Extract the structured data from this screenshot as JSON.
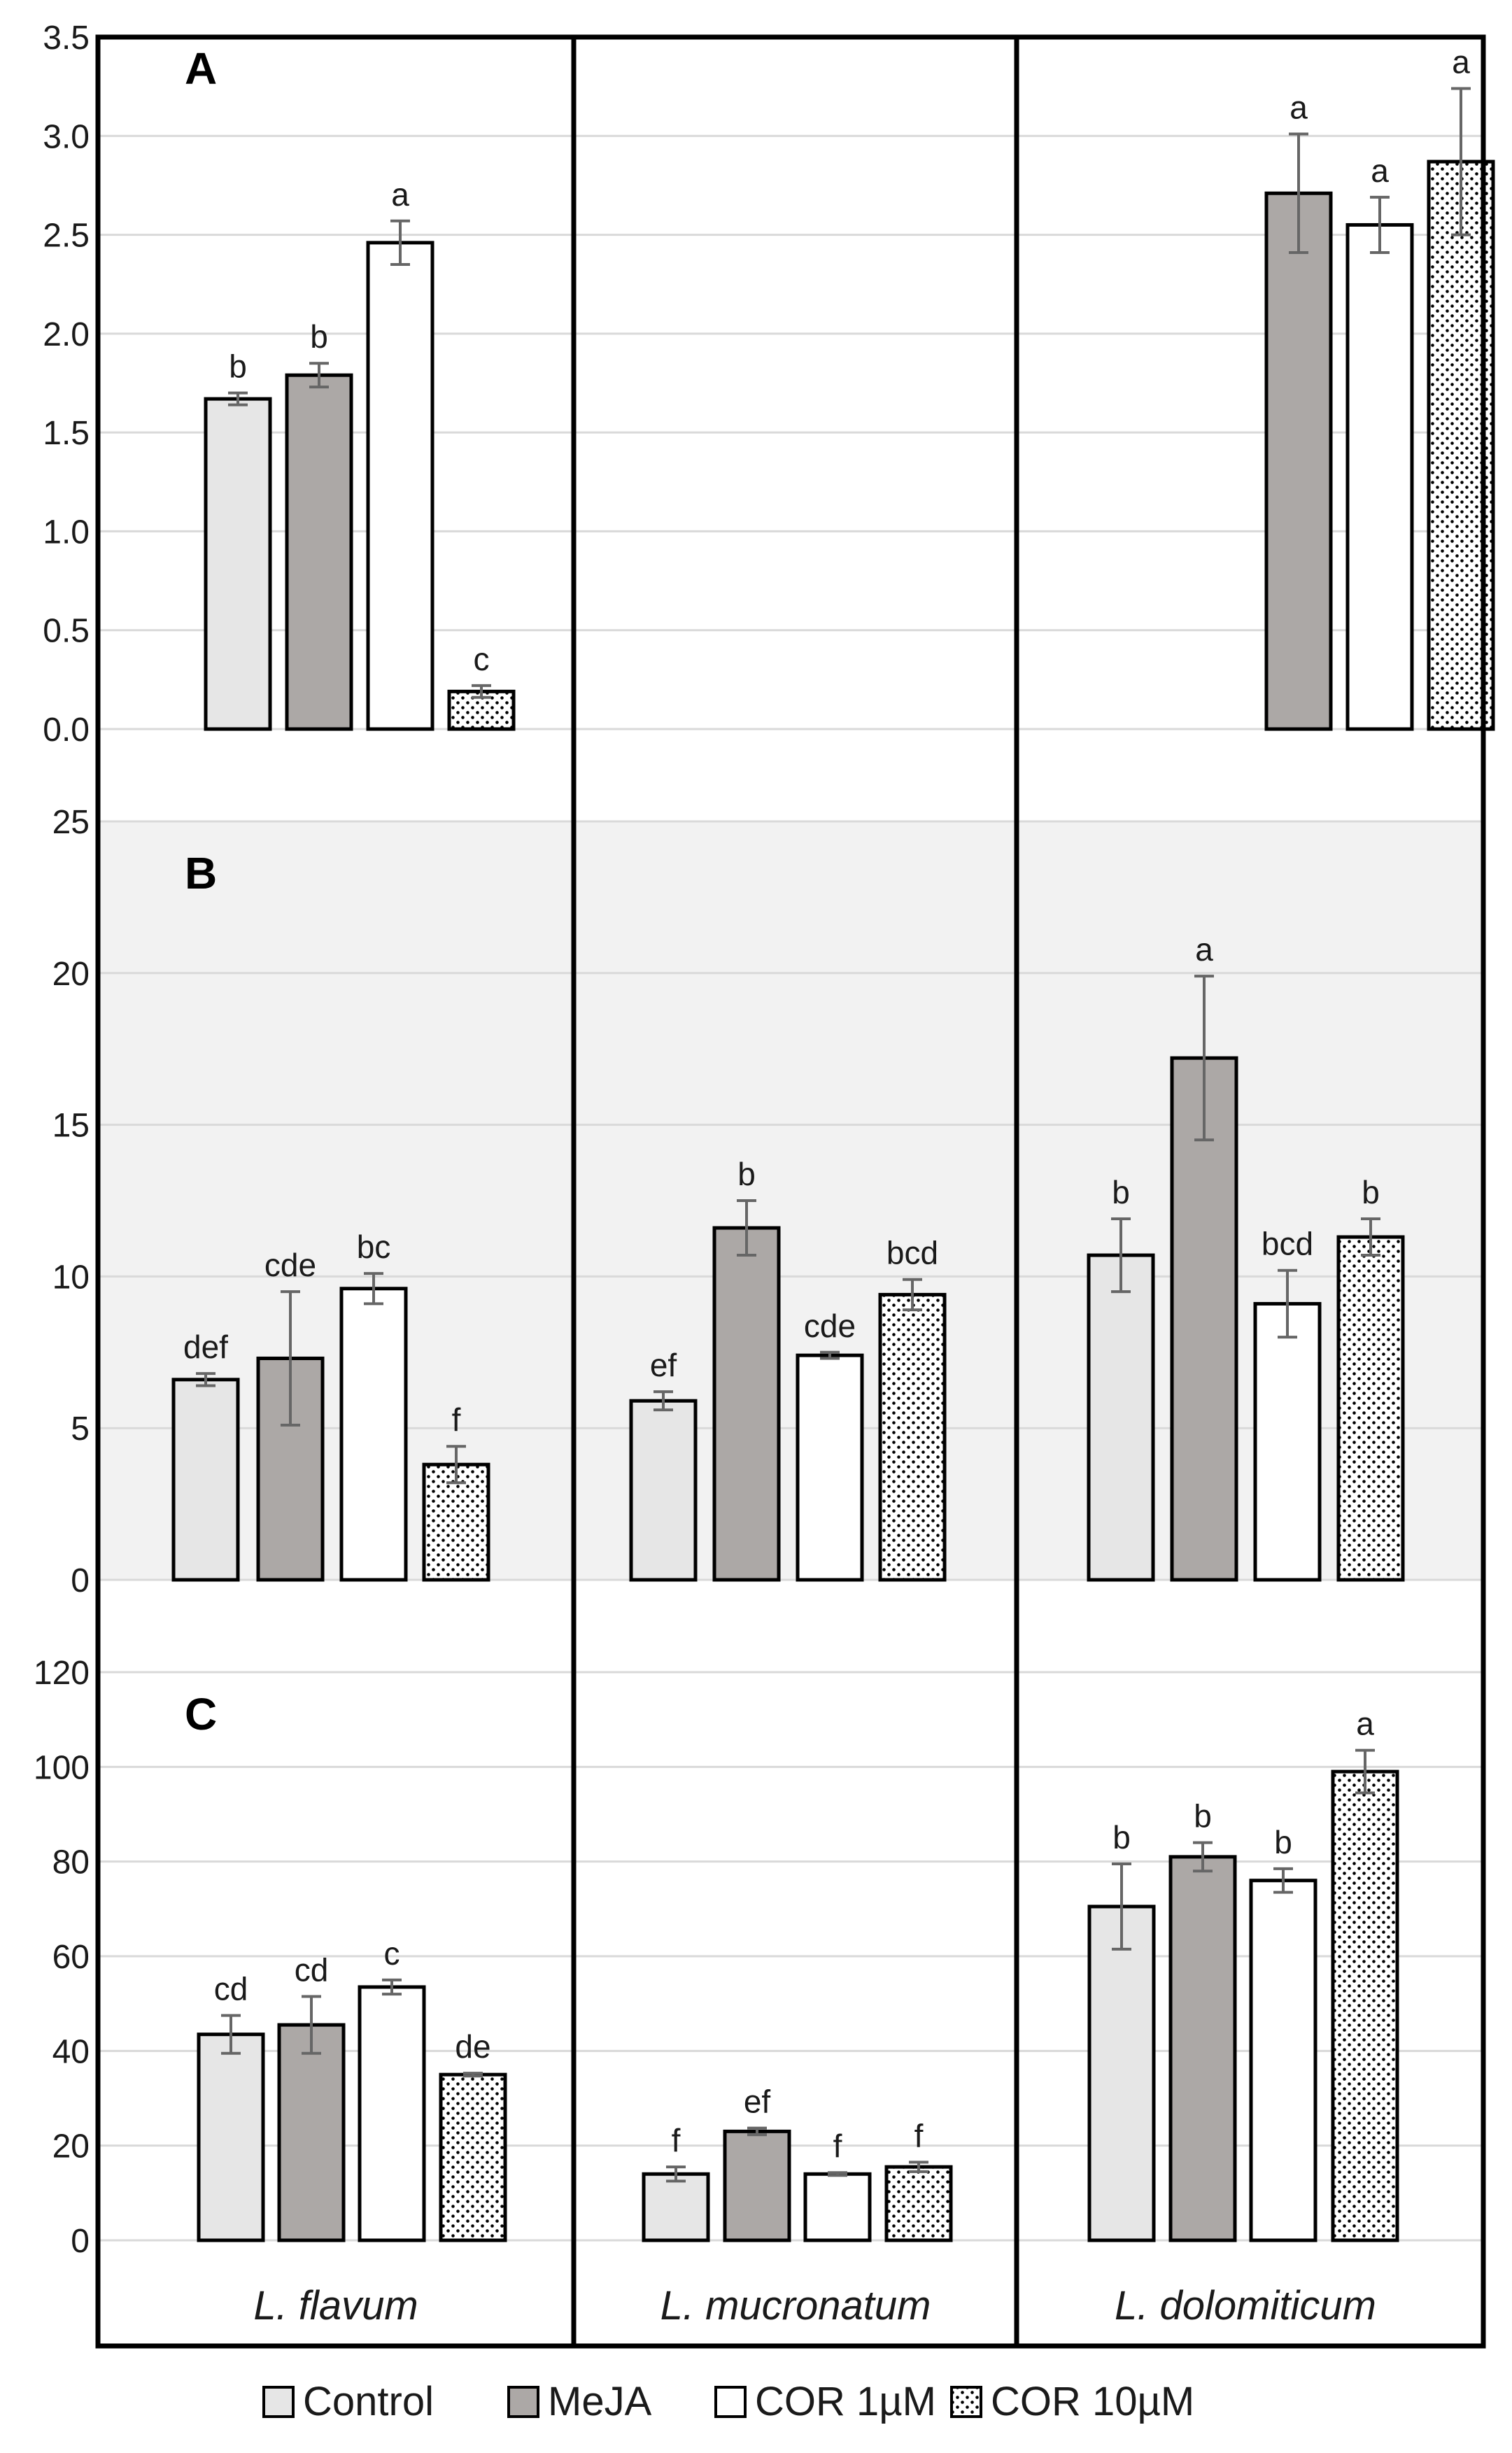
{
  "chart_data": [
    {
      "type": "bar",
      "panel_label": "A",
      "ylim": [
        0,
        3.5
      ],
      "yticks": [
        "0.0",
        "0.5",
        "1.0",
        "1.5",
        "2.0",
        "2.5",
        "3.0",
        "3.5"
      ],
      "grid": true,
      "groups": [
        "L. flavum",
        "L. mucronatum",
        "L. dolomiticum"
      ],
      "series": [
        {
          "name": "Control",
          "values": [
            1.67,
            null,
            null
          ],
          "errors": [
            0.03,
            null,
            null
          ],
          "letters": [
            "b",
            "",
            ""
          ]
        },
        {
          "name": "MeJA",
          "values": [
            1.79,
            null,
            2.71
          ],
          "errors": [
            0.06,
            null,
            0.3
          ],
          "letters": [
            "b",
            "",
            "a"
          ]
        },
        {
          "name": "COR 1µM",
          "values": [
            2.46,
            null,
            2.55
          ],
          "errors": [
            0.11,
            null,
            0.14
          ],
          "letters": [
            "a",
            "",
            "a"
          ]
        },
        {
          "name": "COR 10µM",
          "values": [
            0.19,
            null,
            2.87
          ],
          "errors": [
            0.03,
            null,
            0.37
          ],
          "letters": [
            "c",
            "",
            "a"
          ]
        }
      ]
    },
    {
      "type": "bar",
      "panel_label": "B",
      "ylim": [
        0,
        25
      ],
      "yticks": [
        "0",
        "5",
        "10",
        "15",
        "20",
        "25"
      ],
      "grid": true,
      "groups": [
        "L. flavum",
        "L. mucronatum",
        "L. dolomiticum"
      ],
      "series": [
        {
          "name": "Control",
          "values": [
            6.6,
            5.9,
            10.7
          ],
          "errors": [
            0.2,
            0.3,
            1.2
          ],
          "letters": [
            "def",
            "ef",
            "b"
          ]
        },
        {
          "name": "MeJA",
          "values": [
            7.3,
            11.6,
            17.2
          ],
          "errors": [
            2.2,
            0.9,
            2.7
          ],
          "letters": [
            "cde",
            "b",
            "a"
          ]
        },
        {
          "name": "COR 1µM",
          "values": [
            9.6,
            7.4,
            9.1
          ],
          "errors": [
            0.5,
            0.1,
            1.1
          ],
          "letters": [
            "bc",
            "cde",
            "bcd"
          ]
        },
        {
          "name": "COR 10µM",
          "values": [
            3.8,
            9.4,
            11.3
          ],
          "errors": [
            0.6,
            0.5,
            0.6
          ],
          "letters": [
            "f",
            "bcd",
            "b"
          ]
        }
      ]
    },
    {
      "type": "bar",
      "panel_label": "C",
      "ylim": [
        0,
        120
      ],
      "yticks": [
        "0",
        "20",
        "40",
        "60",
        "80",
        "100",
        "120"
      ],
      "grid": true,
      "groups": [
        "L. flavum",
        "L. mucronatum",
        "L. dolomiticum"
      ],
      "series": [
        {
          "name": "Control",
          "values": [
            43.5,
            14.0,
            70.5
          ],
          "errors": [
            4.0,
            1.5,
            9.0
          ],
          "letters": [
            "cd",
            "f",
            "b"
          ]
        },
        {
          "name": "MeJA",
          "values": [
            45.5,
            23.0,
            81.0
          ],
          "errors": [
            6.0,
            0.7,
            3.0
          ],
          "letters": [
            "cd",
            "ef",
            "b"
          ]
        },
        {
          "name": "COR 1µM",
          "values": [
            53.5,
            14.0,
            76.0
          ],
          "errors": [
            1.5,
            0.3,
            2.5
          ],
          "letters": [
            "c",
            "f",
            "b"
          ]
        },
        {
          "name": "COR 10µM",
          "values": [
            35.0,
            15.5,
            99.0
          ],
          "errors": [
            0.3,
            1.0,
            4.5
          ],
          "letters": [
            "de",
            "f",
            "a"
          ]
        }
      ]
    }
  ],
  "x_labels": [
    "L. flavum",
    "L. mucronatum",
    "L. dolomiticum"
  ],
  "legend": {
    "position": "bottom",
    "entries": [
      "Control",
      "MeJA",
      "COR 1µM",
      "COR 10µM"
    ]
  },
  "colors": {
    "Control": "#e6e6e6",
    "MeJA": "#aca8a6",
    "COR 1µM": "#ffffff",
    "COR 10µM": "#ffffff",
    "panel_b_background": "#f2f2f2",
    "grid": "#d9d9d9",
    "error_bar": "#666666"
  }
}
